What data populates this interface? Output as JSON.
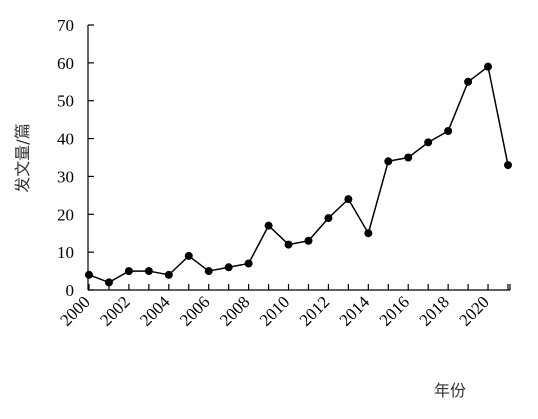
{
  "chart_data": {
    "type": "line",
    "title": "",
    "xlabel": "年份",
    "ylabel": "发文量/篇",
    "ylim": [
      0,
      70
    ],
    "yticks": [
      0,
      10,
      20,
      30,
      40,
      50,
      60,
      70
    ],
    "xlim": [
      2000,
      2021
    ],
    "xticks": [
      2000,
      2002,
      2004,
      2006,
      2008,
      2010,
      2012,
      2014,
      2016,
      2018,
      2020
    ],
    "grid": false,
    "series": [
      {
        "x": [
          2000,
          2001,
          2002,
          2003,
          2004,
          2005,
          2006,
          2007,
          2008,
          2009,
          2010,
          2011,
          2012,
          2013,
          2014,
          2015,
          2016,
          2017,
          2018,
          2019,
          2020,
          2021
        ],
        "values": [
          4,
          2,
          5,
          5,
          4,
          9,
          5,
          6,
          7,
          17,
          12,
          13,
          19,
          24,
          15,
          34,
          35,
          39,
          42,
          55,
          59,
          33
        ]
      }
    ]
  }
}
